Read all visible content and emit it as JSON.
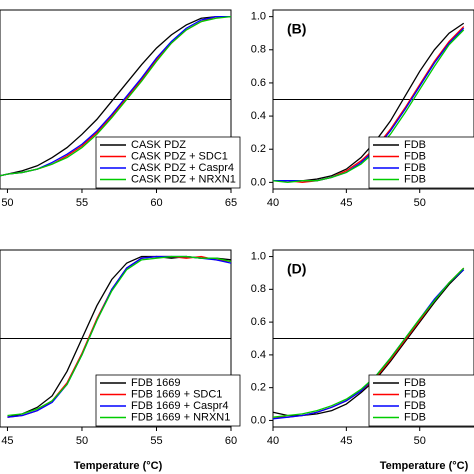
{
  "chart_data": [
    {
      "type": "line",
      "legend": "lower right",
      "hline": 0.5,
      "xlim": [
        49.5,
        65
      ],
      "ylim": [
        -0.04,
        1.04
      ],
      "xticks": [
        50,
        55,
        60,
        65
      ],
      "x": [
        49.5,
        50,
        51,
        52,
        53,
        54,
        55,
        56,
        57,
        58,
        59,
        60,
        61,
        62,
        63,
        64,
        65
      ],
      "series": [
        {
          "name": "CASK PDZ",
          "color": "#000000",
          "values": [
            0.04,
            0.05,
            0.07,
            0.1,
            0.15,
            0.21,
            0.29,
            0.38,
            0.49,
            0.6,
            0.71,
            0.81,
            0.89,
            0.95,
            0.99,
            1.0,
            1.0
          ]
        },
        {
          "name": "CASK PDZ + SDC1",
          "color": "#ff0000",
          "values": [
            0.04,
            0.05,
            0.06,
            0.08,
            0.11,
            0.16,
            0.22,
            0.3,
            0.4,
            0.51,
            0.62,
            0.74,
            0.84,
            0.92,
            0.97,
            1.0,
            1.0
          ]
        },
        {
          "name": "CASK PDZ + Caspr4",
          "color": "#0000ff",
          "values": [
            0.04,
            0.05,
            0.06,
            0.08,
            0.12,
            0.17,
            0.23,
            0.31,
            0.41,
            0.52,
            0.63,
            0.75,
            0.85,
            0.93,
            0.98,
            1.0,
            1.0
          ]
        },
        {
          "name": "CASK PDZ + NRXN1",
          "color": "#00cc00",
          "values": [
            0.04,
            0.05,
            0.06,
            0.08,
            0.11,
            0.15,
            0.21,
            0.29,
            0.39,
            0.5,
            0.61,
            0.73,
            0.84,
            0.92,
            0.97,
            0.99,
            1.0
          ]
        }
      ]
    },
    {
      "type": "line",
      "legend": "lower right",
      "hline": 0.5,
      "panel_label": "(B)",
      "xlim": [
        40,
        53.7
      ],
      "ylim": [
        -0.04,
        1.04
      ],
      "xticks": [
        40,
        45,
        50
      ],
      "yticks": [
        {
          "value": 0,
          "label": "0.0"
        },
        0.2,
        0.4,
        0.6,
        0.8,
        {
          "value": 1,
          "label": "1.0"
        }
      ],
      "x": [
        40,
        41,
        42,
        43,
        44,
        45,
        46,
        47,
        48,
        49,
        50,
        51,
        52,
        53
      ],
      "series": [
        {
          "name": "FDB",
          "color": "#000000",
          "values": [
            0.01,
            0.01,
            0.01,
            0.02,
            0.04,
            0.08,
            0.15,
            0.25,
            0.37,
            0.52,
            0.67,
            0.8,
            0.9,
            0.96
          ]
        },
        {
          "name": "FDB",
          "color": "#ff0000",
          "values": [
            0.01,
            0.01,
            0.0,
            0.01,
            0.03,
            0.07,
            0.13,
            0.21,
            0.32,
            0.45,
            0.59,
            0.73,
            0.85,
            0.94
          ]
        },
        {
          "name": "FDB",
          "color": "#0000ff",
          "values": [
            0.01,
            0.01,
            0.01,
            0.01,
            0.03,
            0.06,
            0.12,
            0.2,
            0.31,
            0.44,
            0.58,
            0.72,
            0.84,
            0.93
          ]
        },
        {
          "name": "FDB",
          "color": "#00cc00",
          "values": [
            0.01,
            0.0,
            0.01,
            0.01,
            0.03,
            0.06,
            0.11,
            0.19,
            0.29,
            0.42,
            0.56,
            0.7,
            0.83,
            0.92
          ]
        }
      ]
    },
    {
      "type": "line",
      "legend": "lower right",
      "hline": 0.5,
      "x_label": "Temperature (°C)",
      "xlim": [
        44.5,
        60
      ],
      "ylim": [
        -0.04,
        1.04
      ],
      "xticks": [
        45,
        50,
        55,
        60
      ],
      "x": [
        45,
        46,
        47,
        48,
        49,
        50,
        51,
        52,
        53,
        54,
        55,
        56,
        57,
        58,
        59,
        60
      ],
      "series": [
        {
          "name": "FDB 1669",
          "color": "#000000",
          "values": [
            0.02,
            0.04,
            0.08,
            0.15,
            0.3,
            0.5,
            0.7,
            0.86,
            0.96,
            1.0,
            1.0,
            0.99,
            1.0,
            0.99,
            0.99,
            0.98
          ]
        },
        {
          "name": "FDB 1669 + SDC1",
          "color": "#ff0000",
          "values": [
            0.02,
            0.03,
            0.06,
            0.12,
            0.23,
            0.41,
            0.62,
            0.8,
            0.93,
            0.99,
            1.0,
            1.0,
            0.99,
            1.0,
            0.98,
            0.97
          ]
        },
        {
          "name": "FDB 1669 + Caspr4",
          "color": "#0000ff",
          "values": [
            0.02,
            0.03,
            0.06,
            0.11,
            0.22,
            0.4,
            0.61,
            0.8,
            0.93,
            0.99,
            1.0,
            1.0,
            1.0,
            0.99,
            0.98,
            0.96
          ]
        },
        {
          "name": "FDB 1669 + NRXN1",
          "color": "#00cc00",
          "values": [
            0.03,
            0.04,
            0.07,
            0.12,
            0.22,
            0.4,
            0.61,
            0.79,
            0.92,
            0.98,
            0.99,
            1.0,
            1.0,
            0.99,
            0.99,
            0.97
          ]
        }
      ]
    },
    {
      "type": "line",
      "legend": "lower right",
      "hline": 0.5,
      "panel_label": "(D)",
      "x_label": "Temperature (°C)",
      "xlim": [
        40,
        53.7
      ],
      "ylim": [
        -0.04,
        1.04
      ],
      "xticks": [
        40,
        45,
        50
      ],
      "yticks": [
        {
          "value": 0,
          "label": "0.0"
        },
        0.2,
        0.4,
        0.6,
        0.8,
        {
          "value": 1,
          "label": "1.0"
        }
      ],
      "x": [
        40,
        41,
        42,
        43,
        44,
        45,
        46,
        47,
        48,
        49,
        50,
        51,
        52,
        53
      ],
      "series": [
        {
          "name": "FDB",
          "color": "#000000",
          "values": [
            0.05,
            0.03,
            0.03,
            0.04,
            0.06,
            0.1,
            0.17,
            0.25,
            0.36,
            0.48,
            0.6,
            0.72,
            0.83,
            0.92
          ]
        },
        {
          "name": "FDB",
          "color": "#ff0000",
          "values": [
            0.02,
            0.02,
            0.03,
            0.05,
            0.08,
            0.12,
            0.18,
            0.26,
            0.37,
            0.49,
            0.61,
            0.73,
            0.84,
            0.93
          ]
        },
        {
          "name": "FDB",
          "color": "#0000ff",
          "values": [
            0.01,
            0.02,
            0.03,
            0.05,
            0.08,
            0.12,
            0.18,
            0.27,
            0.38,
            0.5,
            0.62,
            0.74,
            0.84,
            0.92
          ]
        },
        {
          "name": "FDB",
          "color": "#00cc00",
          "values": [
            0.02,
            0.03,
            0.04,
            0.06,
            0.09,
            0.13,
            0.19,
            0.27,
            0.38,
            0.5,
            0.62,
            0.73,
            0.84,
            0.93
          ]
        }
      ]
    }
  ]
}
